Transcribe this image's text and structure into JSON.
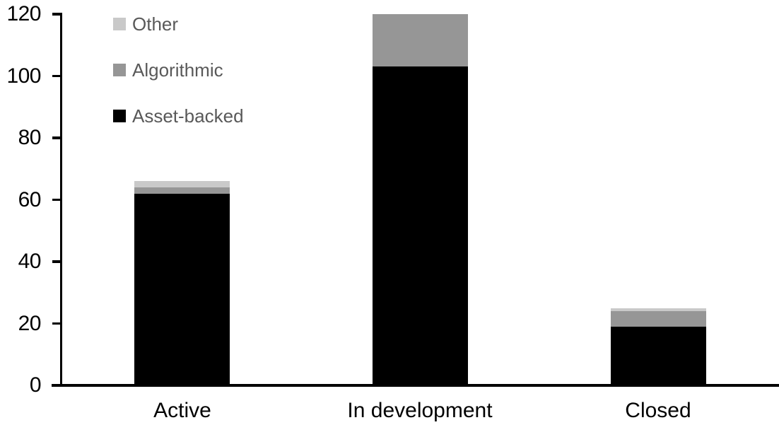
{
  "chart_data": {
    "type": "bar",
    "stacked": true,
    "title": "",
    "xlabel": "",
    "ylabel": "",
    "categories": [
      "Active",
      "In development",
      "Closed"
    ],
    "series": [
      {
        "name": "Asset-backed",
        "color": "#000000",
        "values": [
          62,
          103,
          19
        ]
      },
      {
        "name": "Algorithmic",
        "color": "#969696",
        "values": [
          2,
          17,
          5
        ]
      },
      {
        "name": "Other",
        "color": "#c9c9c9",
        "values": [
          2,
          0,
          1
        ]
      }
    ],
    "totals": [
      66,
      120,
      25
    ],
    "ylim": [
      0,
      120
    ],
    "yticks": [
      0,
      20,
      40,
      60,
      80,
      100,
      120
    ],
    "grid": false,
    "legend_position": "top-left",
    "legend_order": [
      "Other",
      "Algorithmic",
      "Asset-backed"
    ]
  },
  "colors": {
    "axis": "#000000",
    "legend_text": "#595959",
    "background": "#ffffff"
  }
}
